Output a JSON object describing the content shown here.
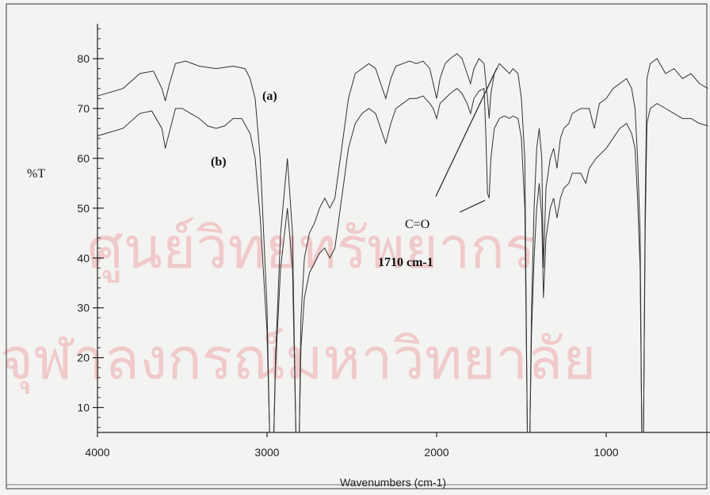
{
  "chart_data": {
    "type": "line",
    "title": "",
    "xlabel": "Wavenumbers (cm-1)",
    "ylabel": "%T",
    "xlim": [
      4000,
      400
    ],
    "ylim": [
      5,
      87
    ],
    "x_ticks": [
      4000,
      3000,
      2000,
      1000
    ],
    "y_ticks": [
      10,
      20,
      30,
      40,
      50,
      60,
      70,
      80
    ],
    "grid": false,
    "series": [
      {
        "name": "(a)",
        "points": [
          [
            4000,
            72.5
          ],
          [
            3850,
            74
          ],
          [
            3750,
            77
          ],
          [
            3670,
            77.5
          ],
          [
            3620,
            74
          ],
          [
            3600,
            71.5
          ],
          [
            3575,
            75
          ],
          [
            3540,
            79
          ],
          [
            3480,
            79.5
          ],
          [
            3400,
            78.5
          ],
          [
            3300,
            78
          ],
          [
            3200,
            78.5
          ],
          [
            3130,
            78
          ],
          [
            3100,
            76
          ],
          [
            3070,
            72
          ],
          [
            3040,
            60
          ],
          [
            3000,
            30
          ],
          [
            2985,
            5
          ],
          [
            2960,
            5
          ],
          [
            2950,
            20
          ],
          [
            2920,
            45
          ],
          [
            2880,
            60
          ],
          [
            2850,
            45
          ],
          [
            2830,
            5
          ],
          [
            2810,
            5
          ],
          [
            2800,
            28
          ],
          [
            2780,
            40
          ],
          [
            2750,
            45
          ],
          [
            2720,
            47
          ],
          [
            2690,
            50
          ],
          [
            2660,
            52
          ],
          [
            2630,
            50
          ],
          [
            2600,
            52
          ],
          [
            2560,
            62
          ],
          [
            2520,
            72
          ],
          [
            2480,
            77
          ],
          [
            2440,
            78
          ],
          [
            2400,
            79
          ],
          [
            2360,
            78
          ],
          [
            2330,
            75
          ],
          [
            2300,
            72
          ],
          [
            2270,
            76
          ],
          [
            2240,
            78.5
          ],
          [
            2200,
            79
          ],
          [
            2160,
            79.5
          ],
          [
            2120,
            79
          ],
          [
            2080,
            79.5
          ],
          [
            2040,
            78
          ],
          [
            2020,
            75
          ],
          [
            2000,
            72
          ],
          [
            1980,
            76
          ],
          [
            1950,
            79
          ],
          [
            1920,
            80
          ],
          [
            1880,
            81
          ],
          [
            1850,
            80
          ],
          [
            1820,
            77
          ],
          [
            1800,
            75
          ],
          [
            1780,
            78
          ],
          [
            1750,
            80
          ],
          [
            1720,
            79
          ],
          [
            1700,
            72
          ],
          [
            1690,
            68
          ],
          [
            1680,
            73
          ],
          [
            1660,
            77
          ],
          [
            1630,
            79
          ],
          [
            1600,
            78
          ],
          [
            1570,
            77
          ],
          [
            1550,
            78
          ],
          [
            1520,
            77
          ],
          [
            1500,
            72
          ],
          [
            1480,
            60
          ],
          [
            1465,
            5
          ],
          [
            1450,
            5
          ],
          [
            1440,
            30
          ],
          [
            1425,
            50
          ],
          [
            1410,
            62
          ],
          [
            1395,
            66
          ],
          [
            1380,
            60
          ],
          [
            1370,
            38
          ],
          [
            1355,
            54
          ],
          [
            1330,
            60
          ],
          [
            1310,
            62
          ],
          [
            1290,
            58
          ],
          [
            1270,
            64
          ],
          [
            1250,
            66
          ],
          [
            1220,
            67
          ],
          [
            1200,
            69
          ],
          [
            1150,
            70
          ],
          [
            1100,
            70
          ],
          [
            1070,
            66
          ],
          [
            1040,
            71
          ],
          [
            1000,
            72
          ],
          [
            960,
            74
          ],
          [
            920,
            75
          ],
          [
            880,
            76
          ],
          [
            850,
            74
          ],
          [
            830,
            70
          ],
          [
            815,
            60
          ],
          [
            800,
            45
          ],
          [
            790,
            5
          ],
          [
            780,
            5
          ],
          [
            770,
            50
          ],
          [
            760,
            76
          ],
          [
            740,
            79
          ],
          [
            700,
            80
          ],
          [
            650,
            77
          ],
          [
            600,
            78
          ],
          [
            550,
            76
          ],
          [
            500,
            77
          ],
          [
            450,
            75
          ],
          [
            400,
            74
          ]
        ]
      },
      {
        "name": "(b)",
        "points": [
          [
            4000,
            64.5
          ],
          [
            3850,
            66
          ],
          [
            3750,
            69
          ],
          [
            3680,
            69.5
          ],
          [
            3620,
            66
          ],
          [
            3600,
            62
          ],
          [
            3570,
            66
          ],
          [
            3540,
            70
          ],
          [
            3500,
            70
          ],
          [
            3450,
            69
          ],
          [
            3400,
            68
          ],
          [
            3350,
            66.5
          ],
          [
            3300,
            66
          ],
          [
            3250,
            66.5
          ],
          [
            3200,
            68
          ],
          [
            3150,
            68
          ],
          [
            3100,
            65
          ],
          [
            3070,
            60
          ],
          [
            3040,
            48
          ],
          [
            3000,
            25
          ],
          [
            2985,
            5
          ],
          [
            2960,
            5
          ],
          [
            2950,
            18
          ],
          [
            2920,
            38
          ],
          [
            2880,
            50
          ],
          [
            2850,
            38
          ],
          [
            2830,
            5
          ],
          [
            2810,
            5
          ],
          [
            2800,
            22
          ],
          [
            2780,
            32
          ],
          [
            2750,
            37
          ],
          [
            2720,
            39
          ],
          [
            2690,
            41
          ],
          [
            2660,
            42
          ],
          [
            2630,
            40
          ],
          [
            2600,
            42
          ],
          [
            2560,
            52
          ],
          [
            2520,
            62
          ],
          [
            2480,
            67
          ],
          [
            2440,
            69
          ],
          [
            2400,
            70
          ],
          [
            2360,
            69
          ],
          [
            2330,
            66
          ],
          [
            2300,
            63
          ],
          [
            2270,
            67
          ],
          [
            2240,
            70
          ],
          [
            2200,
            71
          ],
          [
            2160,
            72
          ],
          [
            2120,
            72
          ],
          [
            2080,
            72.5
          ],
          [
            2040,
            71
          ],
          [
            2020,
            70
          ],
          [
            2000,
            68
          ],
          [
            1980,
            71
          ],
          [
            1950,
            72
          ],
          [
            1920,
            73
          ],
          [
            1880,
            74
          ],
          [
            1850,
            73
          ],
          [
            1820,
            71
          ],
          [
            1800,
            69
          ],
          [
            1780,
            72
          ],
          [
            1750,
            73.5
          ],
          [
            1720,
            74
          ],
          [
            1710,
            65
          ],
          [
            1700,
            53
          ],
          [
            1690,
            52
          ],
          [
            1680,
            60
          ],
          [
            1660,
            66
          ],
          [
            1630,
            68
          ],
          [
            1600,
            68.5
          ],
          [
            1570,
            68
          ],
          [
            1550,
            68.5
          ],
          [
            1520,
            68
          ],
          [
            1500,
            64
          ],
          [
            1480,
            50
          ],
          [
            1465,
            5
          ],
          [
            1450,
            5
          ],
          [
            1440,
            25
          ],
          [
            1425,
            40
          ],
          [
            1410,
            50
          ],
          [
            1395,
            55
          ],
          [
            1380,
            48
          ],
          [
            1370,
            32
          ],
          [
            1355,
            44
          ],
          [
            1330,
            50
          ],
          [
            1310,
            52
          ],
          [
            1290,
            48
          ],
          [
            1270,
            52
          ],
          [
            1250,
            54
          ],
          [
            1220,
            55
          ],
          [
            1200,
            57
          ],
          [
            1150,
            57
          ],
          [
            1120,
            55
          ],
          [
            1100,
            58
          ],
          [
            1060,
            60
          ],
          [
            1000,
            62
          ],
          [
            960,
            64
          ],
          [
            920,
            66
          ],
          [
            880,
            67
          ],
          [
            850,
            65
          ],
          [
            830,
            62
          ],
          [
            815,
            52
          ],
          [
            800,
            38
          ],
          [
            790,
            5
          ],
          [
            780,
            5
          ],
          [
            770,
            45
          ],
          [
            760,
            67
          ],
          [
            740,
            70
          ],
          [
            700,
            71
          ],
          [
            650,
            70
          ],
          [
            600,
            69
          ],
          [
            550,
            68
          ],
          [
            500,
            68
          ],
          [
            450,
            67
          ],
          [
            400,
            66.5
          ]
        ]
      }
    ],
    "annotations": [
      {
        "text": "(a)"
      },
      {
        "text": "(b)"
      },
      {
        "text": "C=O"
      },
      {
        "text": "1710 cm-1"
      }
    ]
  },
  "watermark": {
    "line1": "ศูนย์วิทยทรัพยากร",
    "line2": "จุฬาลงกรณ์มหาวิทยาลัย"
  }
}
